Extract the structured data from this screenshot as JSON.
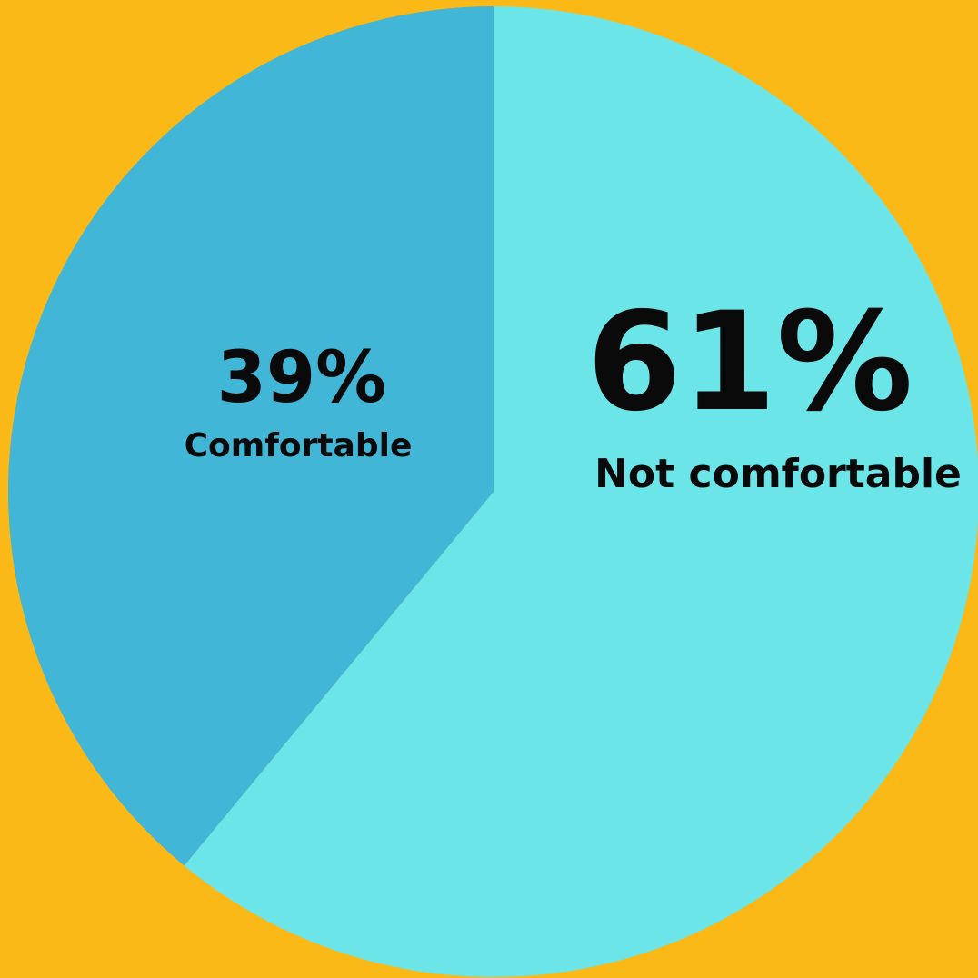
{
  "chart_data": {
    "type": "pie",
    "slices": [
      {
        "label": "Not comfortable",
        "value": 61,
        "value_label": "61%",
        "color": "#6BE5E8"
      },
      {
        "label": "Comfortable",
        "value": 39,
        "value_label": "39%",
        "color": "#42B6D6"
      }
    ],
    "background_color": "#FBB917",
    "text_color": "#0a0a0a",
    "start_angle": "12 o'clock",
    "direction": "clockwise"
  }
}
